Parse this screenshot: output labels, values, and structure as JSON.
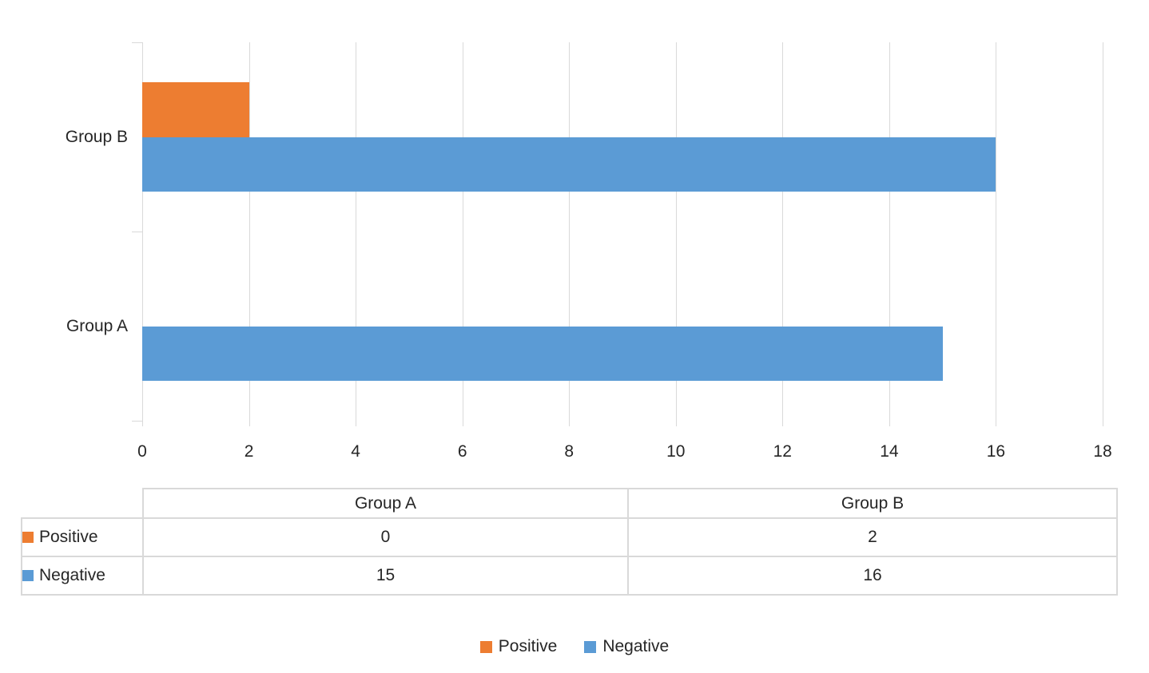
{
  "chart_data": {
    "type": "bar",
    "orientation": "horizontal",
    "title": "",
    "xlabel": "",
    "ylabel": "",
    "categories": [
      "Group A",
      "Group B"
    ],
    "series": [
      {
        "name": "Positive",
        "color": "#ED7D31",
        "values": [
          0,
          2
        ]
      },
      {
        "name": "Negative",
        "color": "#5B9BD5",
        "values": [
          15,
          16
        ]
      }
    ],
    "xlim": [
      0,
      18
    ],
    "xticks": [
      0,
      2,
      4,
      6,
      8,
      10,
      12,
      14,
      16,
      18
    ],
    "grid": true,
    "legend_position": "bottom"
  },
  "table": {
    "corner_label": "",
    "column_headers": [
      "Group A",
      "Group B"
    ],
    "rows": [
      {
        "label": "Positive",
        "key_color": "#ED7D31",
        "values": [
          "0",
          "2"
        ]
      },
      {
        "label": "Negative",
        "key_color": "#5B9BD5",
        "values": [
          "15",
          "16"
        ]
      }
    ]
  },
  "legend": {
    "items": [
      {
        "label": "Positive",
        "color": "#ED7D31"
      },
      {
        "label": "Negative",
        "color": "#5B9BD5"
      }
    ]
  },
  "colors": {
    "positive": "#ED7D31",
    "negative": "#5B9BD5",
    "gridline": "#D9D9D9",
    "table_border": "#D9D9D9",
    "axis_text": "#262626"
  }
}
